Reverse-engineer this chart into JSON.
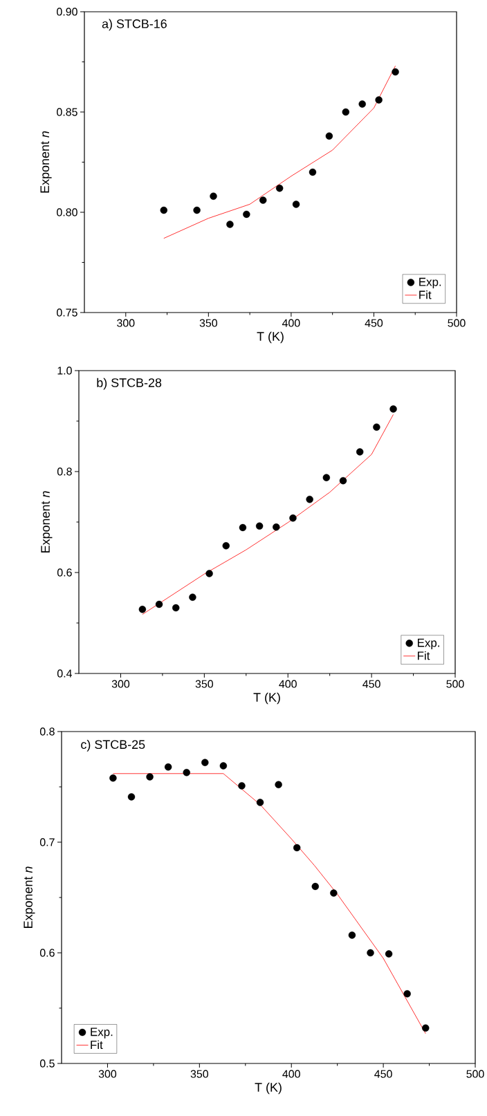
{
  "chart_data": [
    {
      "type": "scatter",
      "title": "a) STCB-16",
      "xlabel": "T (K)",
      "ylabel": "Exponent *n*",
      "xlim": [
        275,
        500
      ],
      "ylim": [
        0.75,
        0.9
      ],
      "xticks": [
        300,
        350,
        400,
        450,
        500
      ],
      "yticks": [
        {
          "value": 0.75,
          "label": "0.75"
        },
        {
          "value": 0.8,
          "label": "0.80"
        },
        {
          "value": 0.85,
          "label": "0.85"
        },
        {
          "value": 0.9,
          "label": "0.90"
        }
      ],
      "legend": "bottom right",
      "series": [
        {
          "name": "Exp.",
          "color": "#000000",
          "marker": "circle",
          "x": [
            323,
            343,
            353,
            363,
            373,
            383,
            393,
            403,
            413,
            423,
            433,
            443,
            453,
            463
          ],
          "values": [
            0.801,
            0.801,
            0.808,
            0.794,
            0.799,
            0.806,
            0.812,
            0.804,
            0.82,
            0.838,
            0.85,
            0.854,
            0.856,
            0.87
          ]
        },
        {
          "name": "Fit",
          "type": "line",
          "color": "#ff0000",
          "x": [
            323,
            350,
            375,
            400,
            425,
            450,
            463
          ],
          "values": [
            0.787,
            0.797,
            0.804,
            0.818,
            0.831,
            0.852,
            0.873
          ]
        }
      ]
    },
    {
      "type": "scatter",
      "title": "b) STCB-28",
      "xlabel": "T (K)",
      "ylabel": "Exponent *n*",
      "xlim": [
        275,
        500
      ],
      "ylim": [
        0.4,
        1.0
      ],
      "xticks": [
        300,
        350,
        400,
        450,
        500
      ],
      "yticks": [
        0.4,
        0.6,
        0.8,
        {
          "value": 1.0,
          "label": "1.0"
        }
      ],
      "legend": "bottom right",
      "series": [
        {
          "name": "Exp.",
          "color": "#000000",
          "marker": "circle",
          "x": [
            313,
            323,
            333,
            343,
            353,
            363,
            373,
            383,
            393,
            403,
            413,
            423,
            433,
            443,
            453,
            463
          ],
          "values": [
            0.527,
            0.537,
            0.53,
            0.551,
            0.598,
            0.653,
            0.689,
            0.692,
            0.69,
            0.708,
            0.745,
            0.788,
            0.782,
            0.839,
            0.888,
            0.924
          ]
        },
        {
          "name": "Fit",
          "type": "line",
          "color": "#ff0000",
          "x": [
            313,
            350,
            375,
            400,
            425,
            450,
            463
          ],
          "values": [
            0.517,
            0.597,
            0.645,
            0.699,
            0.759,
            0.834,
            0.913
          ]
        }
      ]
    },
    {
      "type": "scatter",
      "title": "c) STCB-25",
      "xlabel": "T (K)",
      "ylabel": "Exponent *n*",
      "xlim": [
        275,
        500
      ],
      "ylim": [
        0.5,
        0.8
      ],
      "xticks": [
        300,
        350,
        400,
        450,
        500
      ],
      "yticks": [
        0.5,
        0.6,
        0.7,
        0.8
      ],
      "legend": "bottom left",
      "series": [
        {
          "name": "Exp.",
          "color": "#000000",
          "marker": "circle",
          "x": [
            303,
            313,
            323,
            333,
            343,
            353,
            363,
            373,
            383,
            393,
            403,
            413,
            423,
            433,
            443,
            453,
            463,
            473
          ],
          "values": [
            0.758,
            0.741,
            0.759,
            0.768,
            0.763,
            0.772,
            0.769,
            0.751,
            0.736,
            0.752,
            0.695,
            0.66,
            0.654,
            0.616,
            0.6,
            0.599,
            0.563,
            0.532
          ]
        },
        {
          "name": "Fit",
          "type": "line",
          "color": "#ff0000",
          "x": [
            303,
            363,
            383,
            400,
            412.5,
            425,
            450,
            473
          ],
          "values": [
            0.762,
            0.762,
            0.734,
            0.703,
            0.679,
            0.653,
            0.595,
            0.527
          ]
        }
      ]
    }
  ]
}
